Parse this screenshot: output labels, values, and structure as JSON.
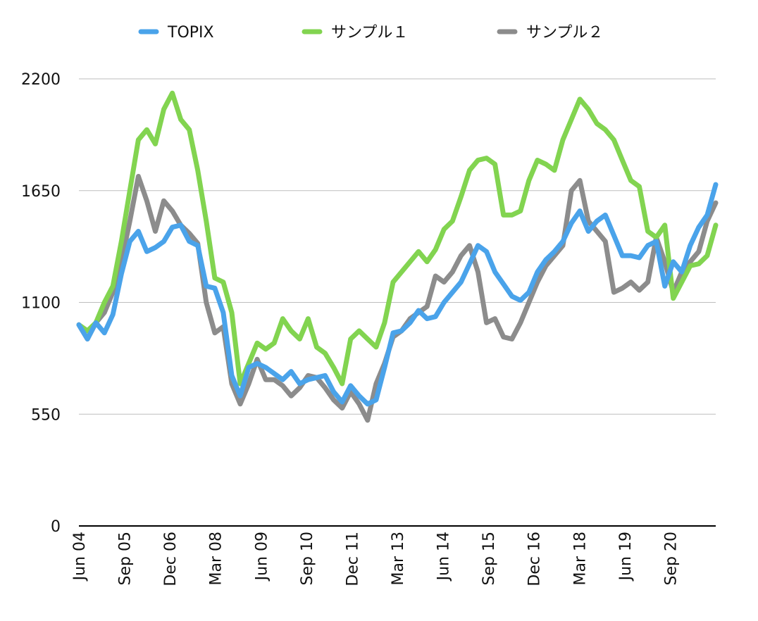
{
  "chart_data": {
    "type": "line",
    "title": "",
    "xlabel": "",
    "ylabel": "",
    "ylim": [
      0,
      2200
    ],
    "yticks": [
      0,
      550,
      1100,
      1650,
      2200
    ],
    "grid": true,
    "legend_position": "top",
    "x_tick_labels": [
      "Jun 04",
      "Sep 05",
      "Dec 06",
      "Mar 08",
      "Jun 09",
      "Sep 10",
      "Dec 11",
      "Mar 13",
      "Jun 14",
      "Sep 15",
      "Dec 16",
      "Mar 18",
      "Jun 19",
      "Sep 20"
    ],
    "series": [
      {
        "name": "TOPIX",
        "color": "#4aa3ea",
        "values": [
          990,
          920,
          1000,
          950,
          1040,
          1240,
          1400,
          1450,
          1350,
          1370,
          1400,
          1470,
          1480,
          1400,
          1380,
          1180,
          1170,
          1050,
          740,
          640,
          780,
          800,
          780,
          750,
          720,
          760,
          700,
          720,
          730,
          740,
          660,
          610,
          690,
          640,
          600,
          620,
          780,
          950,
          960,
          1000,
          1060,
          1020,
          1030,
          1100,
          1150,
          1200,
          1290,
          1380,
          1350,
          1250,
          1190,
          1130,
          1110,
          1150,
          1250,
          1310,
          1350,
          1400,
          1490,
          1550,
          1450,
          1500,
          1530,
          1430,
          1330,
          1330,
          1320,
          1380,
          1400,
          1180,
          1300,
          1250,
          1380,
          1470,
          1530,
          1680
        ]
      },
      {
        "name": "サンプル１",
        "color": "#82d450",
        "values": [
          990,
          960,
          1000,
          1100,
          1180,
          1400,
          1650,
          1900,
          1950,
          1880,
          2050,
          2130,
          2000,
          1950,
          1750,
          1500,
          1220,
          1200,
          1050,
          700,
          800,
          900,
          870,
          900,
          1020,
          960,
          920,
          1020,
          880,
          850,
          780,
          700,
          920,
          960,
          920,
          880,
          1000,
          1200,
          1250,
          1300,
          1350,
          1300,
          1360,
          1460,
          1500,
          1620,
          1750,
          1800,
          1810,
          1780,
          1530,
          1530,
          1550,
          1700,
          1800,
          1780,
          1750,
          1900,
          2000,
          2100,
          2050,
          1980,
          1950,
          1900,
          1800,
          1700,
          1670,
          1450,
          1420,
          1480,
          1120,
          1200,
          1280,
          1290,
          1330,
          1480
        ]
      },
      {
        "name": "サンプル２",
        "color": "#8c8c8c",
        "values": [
          990,
          920,
          1000,
          1050,
          1150,
          1300,
          1500,
          1720,
          1600,
          1450,
          1600,
          1550,
          1480,
          1440,
          1390,
          1100,
          950,
          980,
          700,
          600,
          700,
          820,
          720,
          720,
          690,
          640,
          680,
          740,
          730,
          680,
          620,
          580,
          660,
          600,
          520,
          700,
          800,
          930,
          960,
          1020,
          1050,
          1080,
          1230,
          1200,
          1250,
          1330,
          1380,
          1250,
          1000,
          1020,
          930,
          920,
          1000,
          1100,
          1200,
          1280,
          1330,
          1380,
          1650,
          1700,
          1500,
          1450,
          1400,
          1150,
          1170,
          1200,
          1160,
          1200,
          1420,
          1300,
          1150,
          1250,
          1300,
          1350,
          1500,
          1590
        ]
      }
    ]
  }
}
